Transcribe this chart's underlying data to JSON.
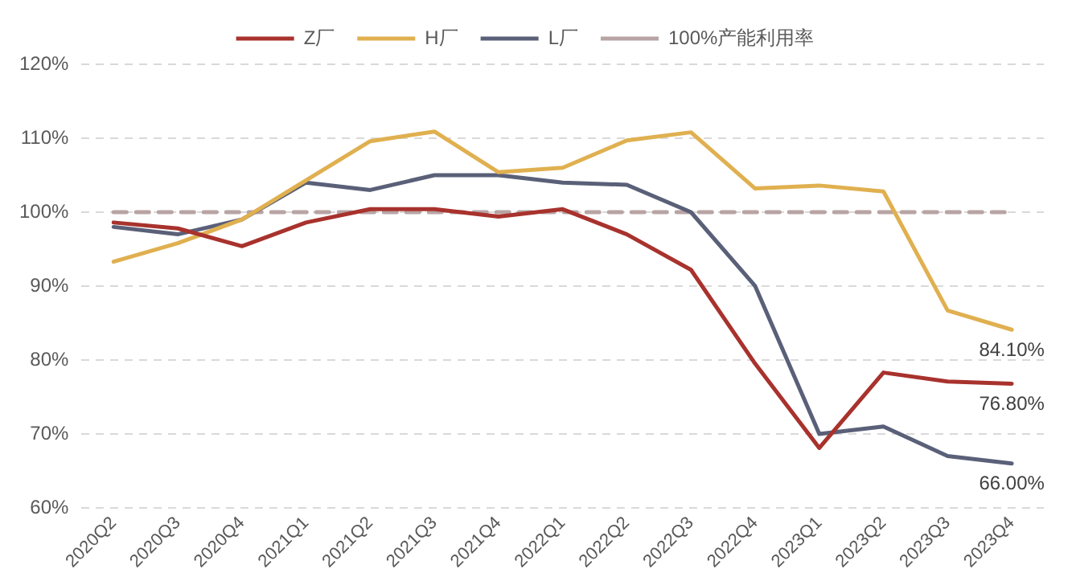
{
  "chart_data": {
    "type": "line",
    "categories": [
      "2020Q2",
      "2020Q3",
      "2020Q4",
      "2021Q1",
      "2021Q2",
      "2021Q3",
      "2021Q4",
      "2022Q1",
      "2022Q2",
      "2022Q3",
      "2022Q4",
      "2023Q1",
      "2023Q2",
      "2023Q3",
      "2023Q4"
    ],
    "series": [
      {
        "name": "Z厂",
        "color": "#a8322d",
        "values": [
          98.6,
          97.8,
          95.4,
          98.6,
          100.4,
          100.4,
          99.4,
          100.4,
          97,
          92.2,
          79.5,
          68.1,
          78.3,
          77.1,
          76.8
        ],
        "value_labels": [
          null,
          null,
          null,
          null,
          null,
          null,
          null,
          null,
          null,
          null,
          null,
          null,
          null,
          null,
          "76.80%"
        ]
      },
      {
        "name": "H厂",
        "color": "#e0b050",
        "values": [
          93.3,
          95.8,
          99,
          104.3,
          109.6,
          110.9,
          105.4,
          106,
          109.7,
          110.8,
          103.2,
          103.6,
          102.8,
          86.7,
          84.1
        ],
        "value_labels": [
          null,
          null,
          null,
          null,
          null,
          null,
          null,
          null,
          null,
          null,
          null,
          null,
          null,
          null,
          "84.10%"
        ]
      },
      {
        "name": "L厂",
        "color": "#5a6078",
        "values": [
          98,
          97,
          99,
          104,
          103,
          105,
          105,
          104,
          103.7,
          100,
          90,
          70,
          71,
          67,
          66
        ],
        "value_labels": [
          null,
          null,
          null,
          null,
          null,
          null,
          null,
          null,
          null,
          null,
          null,
          null,
          null,
          null,
          "66.00%"
        ]
      },
      {
        "name": "100%产能利用率",
        "color": "#b8a4a4",
        "line_style": "dashed",
        "values": [
          100,
          100,
          100,
          100,
          100,
          100,
          100,
          100,
          100,
          100,
          100,
          100,
          100,
          100,
          100
        ]
      }
    ],
    "ylim": [
      60,
      120
    ],
    "yticks": [
      {
        "value": 60,
        "label": "60%"
      },
      {
        "value": 70,
        "label": "70%"
      },
      {
        "value": 80,
        "label": "80%"
      },
      {
        "value": 90,
        "label": "90%"
      },
      {
        "value": 100,
        "label": "100%"
      },
      {
        "value": 110,
        "label": "110%"
      },
      {
        "value": 120,
        "label": "120%"
      }
    ],
    "grid": "y",
    "legend": "top",
    "marker": "none",
    "line_style": "solid"
  }
}
